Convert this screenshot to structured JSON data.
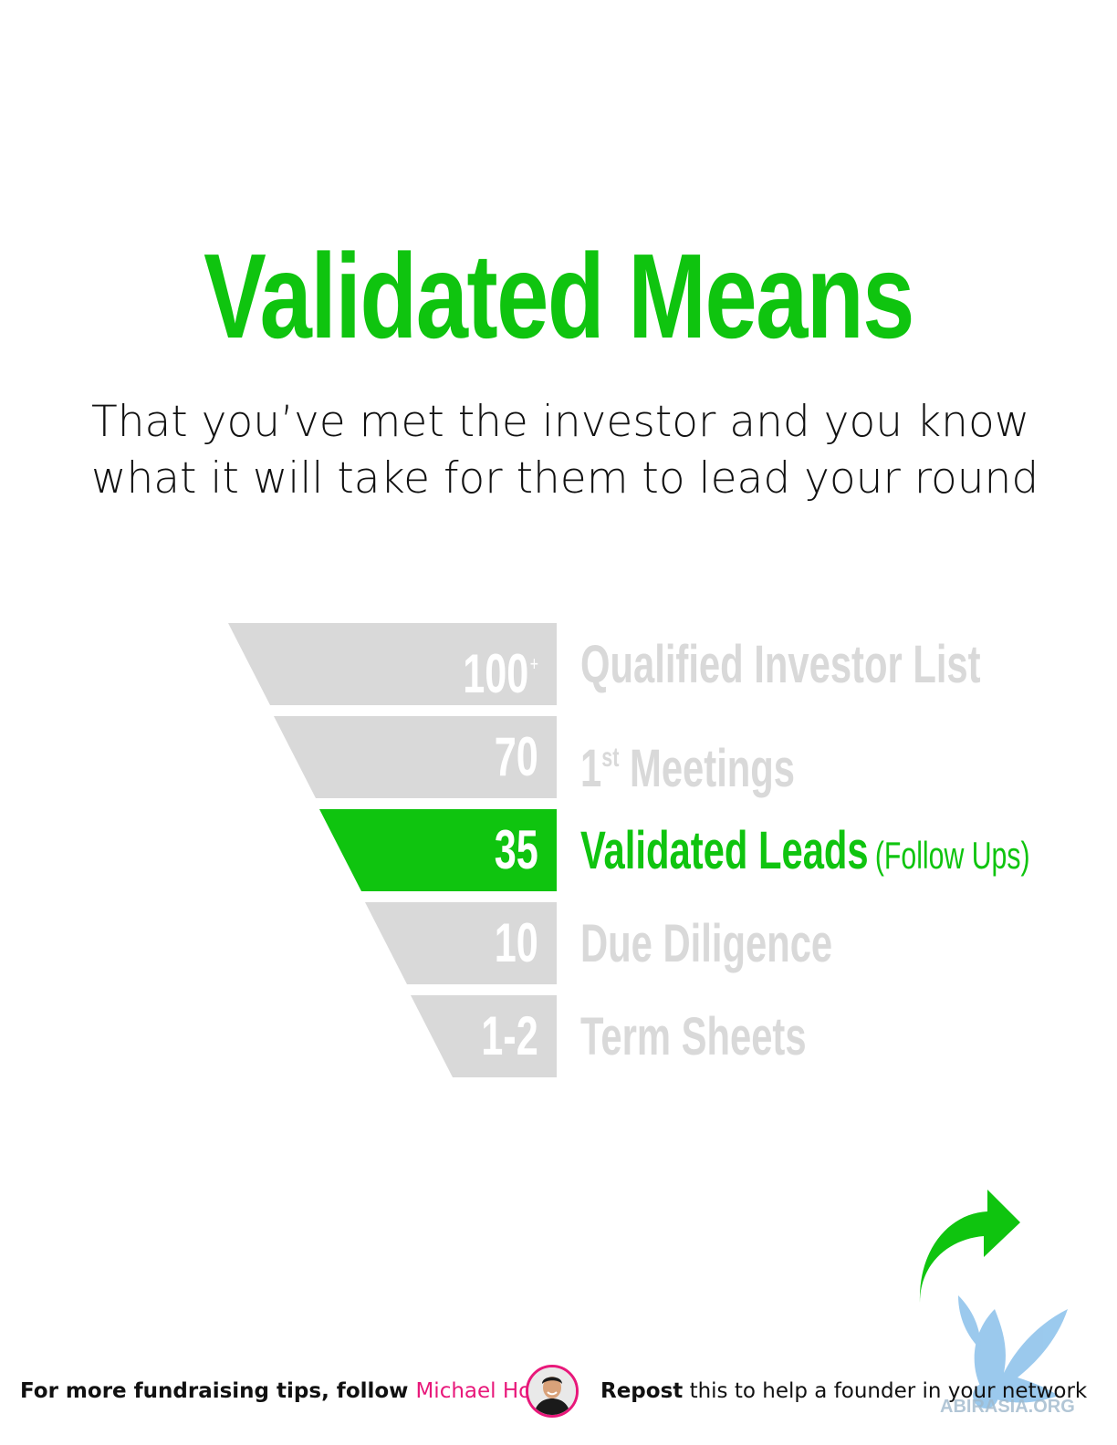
{
  "title": "Validated Means",
  "subtitle": {
    "line1": "That you’ve met the investor and you know",
    "line2": "what it will take for them to lead your round"
  },
  "funnel": {
    "stages": [
      {
        "number": "100",
        "number_sup": "+",
        "label": "Qualified Investor List",
        "label_sup": "",
        "label_rest": "",
        "extra": "",
        "active": false
      },
      {
        "number": "70",
        "number_sup": "",
        "label": "1",
        "label_sup": "st",
        "label_rest": " Meetings",
        "extra": "",
        "active": false
      },
      {
        "number": "35",
        "number_sup": "",
        "label": "Validated Leads",
        "label_sup": "",
        "label_rest": "",
        "extra": "(Follow Ups)",
        "active": true
      },
      {
        "number": "10",
        "number_sup": "",
        "label": "Due Diligence",
        "label_sup": "",
        "label_rest": "",
        "extra": "",
        "active": false
      },
      {
        "number": "1-2",
        "number_sup": "",
        "label": "Term Sheets",
        "label_sup": "",
        "label_rest": "",
        "extra": "",
        "active": false
      }
    ],
    "colors": {
      "inactive": "#d9d9d9",
      "active": "#0fc40f"
    }
  },
  "footer": {
    "left_text": "For more fundraising tips, follow ",
    "left_name": "Michael Ho",
    "right_strong": "Repost",
    "right_text": " this to help a founder in your network"
  },
  "icons": {
    "share_arrow": "share-arrow-icon",
    "avatar": "avatar"
  },
  "colors": {
    "accent": "#0fc40f",
    "name": "#e8187a"
  }
}
